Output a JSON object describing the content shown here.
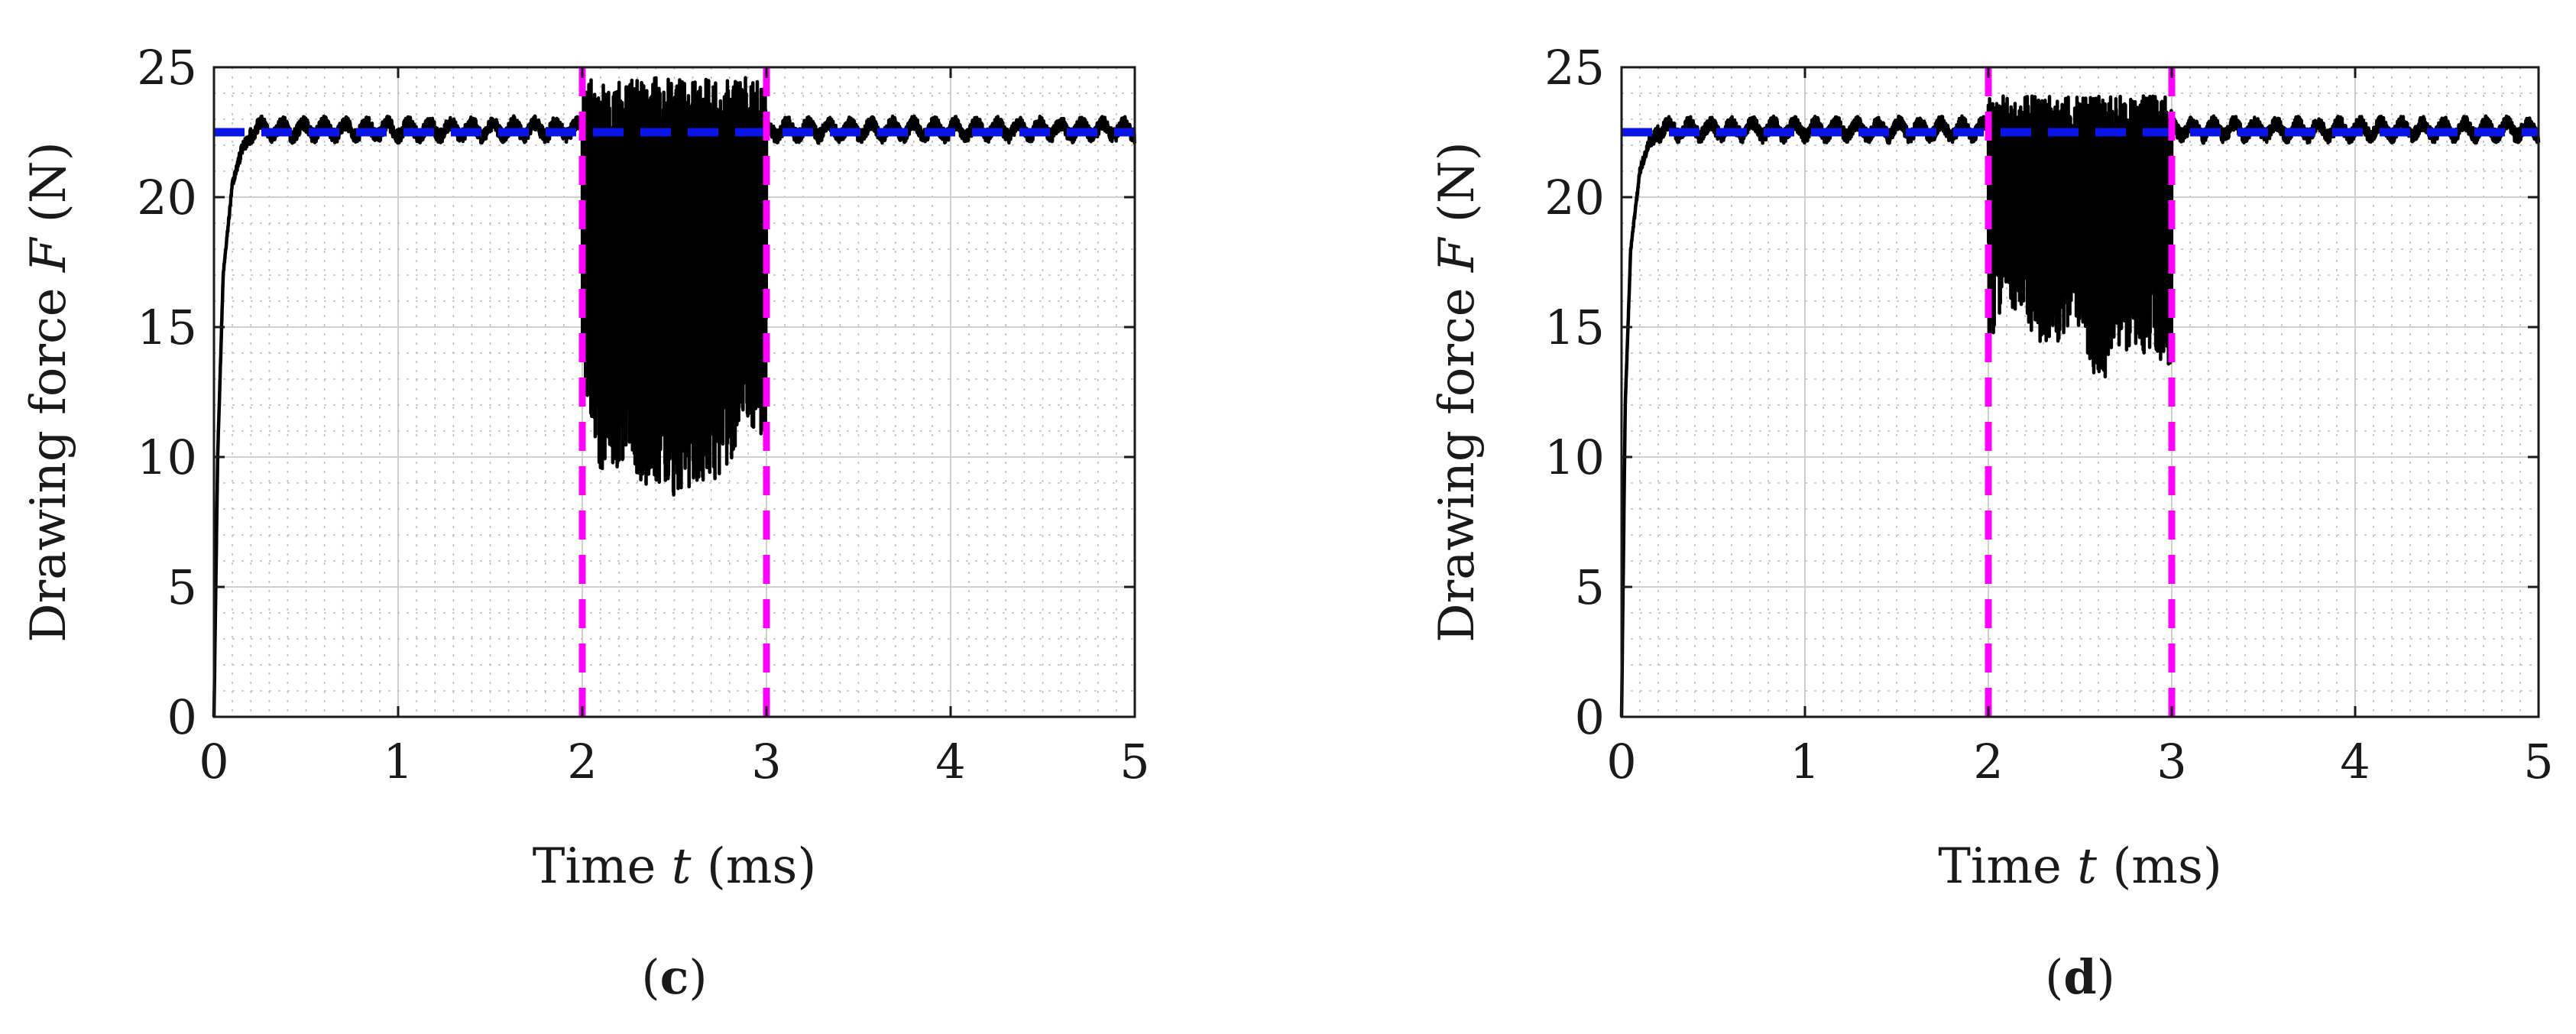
{
  "figure": {
    "panels": [
      {
        "label_open": "(",
        "label_letter": "c",
        "label_close": ")"
      },
      {
        "label_open": "(",
        "label_letter": "d",
        "label_close": ")"
      }
    ]
  },
  "colors": {
    "signal": "#000000",
    "reference": "#0a14e6",
    "window": "#ff00ff",
    "grid_major": "#cfcfcf",
    "grid_minor": "#bdbdbd"
  },
  "chart_data": [
    {
      "type": "line",
      "panel": "c",
      "xlabel": {
        "prefix": "Time ",
        "var": "t",
        "suffix": " (ms)"
      },
      "ylabel": {
        "prefix": "Drawing force ",
        "var": "F",
        "suffix": " (N)"
      },
      "xlim": [
        0,
        5
      ],
      "ylim": [
        0,
        25
      ],
      "xticks": [
        0,
        1,
        2,
        3,
        4,
        5
      ],
      "yticks": [
        0,
        5,
        10,
        15,
        20,
        25
      ],
      "grid": "major and minor",
      "series": [
        {
          "style": "solid-black",
          "x": [
            0,
            0.02,
            0.05,
            0.1,
            0.15,
            0.2,
            0.3,
            0.5,
            0.8,
            1.0,
            1.3,
            1.5,
            1.8,
            1.99,
            2.0,
            2.1,
            2.3,
            2.5,
            2.7,
            2.9,
            3.0,
            3.01,
            3.2,
            3.5,
            4.0,
            4.5,
            5.0
          ],
          "y": [
            0,
            10,
            17,
            20.5,
            21.8,
            22.4,
            22.8,
            22.5,
            22.7,
            22.3,
            22.6,
            22.8,
            22.5,
            22.6,
            13,
            9.5,
            9,
            8.5,
            9,
            10.5,
            11,
            22.5,
            22.7,
            22.5,
            22.6,
            22.4,
            22.6
          ],
          "oscillation_window": {
            "x": [
              2,
              3
            ],
            "y_min": 8.4,
            "y_max": 24.6
          }
        },
        {
          "style": "dashed-blue",
          "x": [
            0,
            5
          ],
          "y": [
            22.5,
            22.5
          ]
        },
        {
          "style": "dashed-magenta",
          "x": [
            2,
            2
          ],
          "y": [
            0,
            25
          ]
        },
        {
          "style": "dashed-magenta",
          "x": [
            3,
            3
          ],
          "y": [
            0,
            25
          ]
        }
      ]
    },
    {
      "type": "line",
      "panel": "d",
      "xlabel": {
        "prefix": "Time ",
        "var": "t",
        "suffix": " (ms)"
      },
      "ylabel": {
        "prefix": "Drawing force ",
        "var": "F",
        "suffix": " (N)"
      },
      "xlim": [
        0,
        5
      ],
      "ylim": [
        0,
        25
      ],
      "xticks": [
        0,
        1,
        2,
        3,
        4,
        5
      ],
      "yticks": [
        0,
        5,
        10,
        15,
        20,
        25
      ],
      "grid": "major and minor",
      "series": [
        {
          "style": "solid-black",
          "x": [
            0,
            0.02,
            0.05,
            0.1,
            0.15,
            0.2,
            0.3,
            0.5,
            0.8,
            1.0,
            1.3,
            1.5,
            1.8,
            1.99,
            2.0,
            2.1,
            2.3,
            2.5,
            2.6,
            2.7,
            2.9,
            3.0,
            3.01,
            3.2,
            3.5,
            4.0,
            4.5,
            5.0
          ],
          "y": [
            0,
            12,
            18,
            21,
            22.1,
            22.5,
            22.8,
            22.5,
            22.7,
            22.4,
            22.6,
            22.7,
            22.5,
            22.6,
            14,
            16,
            14,
            15,
            12.5,
            14,
            14,
            13,
            22.5,
            22.6,
            22.5,
            22.6,
            22.4,
            22.6
          ],
          "oscillation_window": {
            "x": [
              2,
              3
            ],
            "y_min": 12.5,
            "y_max": 23.9
          }
        },
        {
          "style": "dashed-blue",
          "x": [
            0,
            5
          ],
          "y": [
            22.5,
            22.5
          ]
        },
        {
          "style": "dashed-magenta",
          "x": [
            2,
            2
          ],
          "y": [
            0,
            25
          ]
        },
        {
          "style": "dashed-magenta",
          "x": [
            3,
            3
          ],
          "y": [
            0,
            25
          ]
        }
      ]
    }
  ]
}
